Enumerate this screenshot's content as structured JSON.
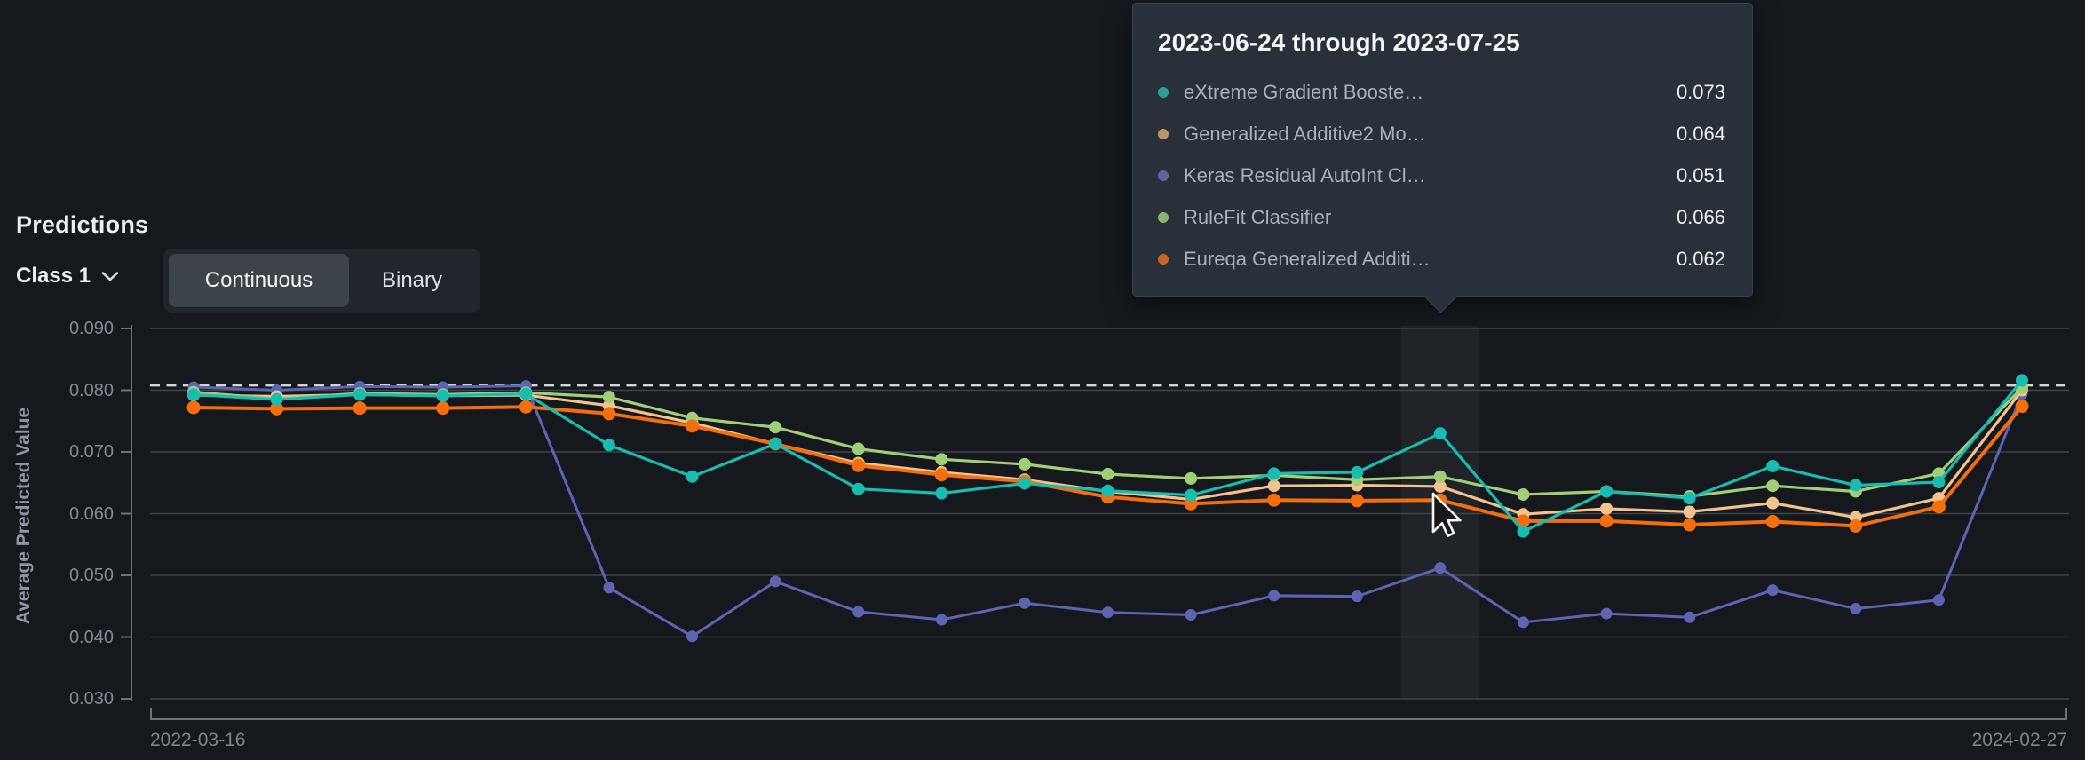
{
  "page": {
    "heading": "Predictions"
  },
  "controls": {
    "class_selector_label": "Class 1",
    "chevron_icon": "chevron-down",
    "view_options": [
      {
        "label": "Continuous",
        "selected": true
      },
      {
        "label": "Binary",
        "selected": false
      }
    ]
  },
  "tooltip": {
    "title": "2023-06-24 through 2023-07-25",
    "rows": [
      {
        "label": "eXtreme Gradient Booste…",
        "value": "0.073",
        "color": "#2b9f96"
      },
      {
        "label": "Generalized Additive2 Mo…",
        "value": "0.064",
        "color": "#bf9369"
      },
      {
        "label": "Keras Residual AutoInt Cl…",
        "value": "0.051",
        "color": "#5d64a4"
      },
      {
        "label": "RuleFit Classifier",
        "value": "0.066",
        "color": "#8bb36e"
      },
      {
        "label": "Eureqa Generalized Additi…",
        "value": "0.062",
        "color": "#c96529"
      }
    ]
  },
  "chart_data": {
    "type": "line",
    "title": "Predictions",
    "ylabel": "Average Predicted Value",
    "ylim": [
      0.03,
      0.09
    ],
    "y_tick_labels": [
      "0.090",
      "0.080",
      "0.070",
      "0.060",
      "0.050",
      "0.040",
      "0.030"
    ],
    "y_ticks": [
      0.09,
      0.08,
      0.07,
      0.06,
      0.05,
      0.04,
      0.03
    ],
    "x_start_label": "2022-03-16",
    "x_end_label": "2024-02-27",
    "n_points": 23,
    "hover_index": 15,
    "hover_range_label": "2023-06-24 through 2023-07-25",
    "grid": true,
    "legend_position": "tooltip-only",
    "reference_line": {
      "value": 0.0808,
      "style": "dashed",
      "color": "#d2d5d8"
    },
    "series": [
      {
        "name": "Keras Residual AutoInt Cl…",
        "color": "#5d64b2",
        "values": [
          0.0805,
          0.08,
          0.0806,
          0.0805,
          0.0807,
          0.048,
          0.0401,
          0.049,
          0.0441,
          0.0428,
          0.0455,
          0.044,
          0.0436,
          0.0467,
          0.0466,
          0.0512,
          0.0424,
          0.0438,
          0.0432,
          0.0476,
          0.0446,
          0.046,
          0.0794
        ]
      },
      {
        "name": "Generalized Additive2 Mo…",
        "color": "#f3c28d",
        "values": [
          0.0792,
          0.079,
          0.0793,
          0.0791,
          0.0792,
          0.0775,
          0.0747,
          0.0713,
          0.0682,
          0.0667,
          0.0655,
          0.0636,
          0.0623,
          0.0645,
          0.0646,
          0.0644,
          0.0599,
          0.0608,
          0.0603,
          0.0617,
          0.0594,
          0.0625,
          0.08
        ]
      },
      {
        "name": "RuleFit Classifier",
        "color": "#a0cf77",
        "values": [
          0.0797,
          0.0786,
          0.0795,
          0.0793,
          0.0796,
          0.0789,
          0.0755,
          0.074,
          0.0705,
          0.0688,
          0.068,
          0.0664,
          0.0657,
          0.0662,
          0.0655,
          0.066,
          0.0631,
          0.0636,
          0.0628,
          0.0645,
          0.0636,
          0.0665,
          0.0804
        ]
      },
      {
        "name": "Eureqa Generalized Additi…",
        "color": "#f56e0e",
        "values": [
          0.0772,
          0.077,
          0.0771,
          0.0771,
          0.0773,
          0.0762,
          0.0742,
          0.0713,
          0.0678,
          0.0663,
          0.0652,
          0.0627,
          0.0616,
          0.0622,
          0.0621,
          0.0622,
          0.0588,
          0.0588,
          0.0582,
          0.0587,
          0.058,
          0.0611,
          0.0774
        ]
      },
      {
        "name": "eXtreme Gradient Booste…",
        "color": "#17bdb0",
        "values": [
          0.0793,
          0.0785,
          0.0793,
          0.0791,
          0.0794,
          0.0711,
          0.066,
          0.0713,
          0.064,
          0.0633,
          0.0649,
          0.0637,
          0.063,
          0.0665,
          0.0667,
          0.073,
          0.0571,
          0.0636,
          0.0625,
          0.0677,
          0.0646,
          0.0651,
          0.0816
        ]
      }
    ]
  },
  "cursor": {
    "type": "arrow-pointer",
    "visible": true
  }
}
